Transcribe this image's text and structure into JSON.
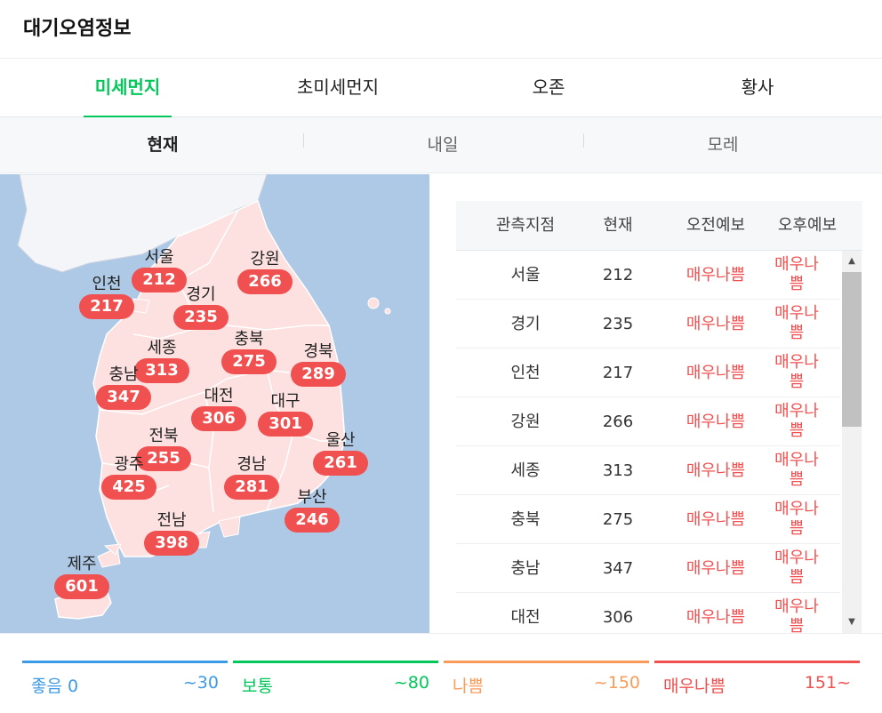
{
  "app": {
    "title": "대기오염정보"
  },
  "tabs": [
    {
      "label": "미세먼지",
      "active": true
    },
    {
      "label": "초미세먼지",
      "active": false
    },
    {
      "label": "오존",
      "active": false
    },
    {
      "label": "황사",
      "active": false
    }
  ],
  "subtabs": [
    {
      "label": "현재",
      "active": true
    },
    {
      "label": "내일",
      "active": false
    },
    {
      "label": "모레",
      "active": false
    }
  ],
  "map": {
    "colors": {
      "sea": "#aec9e6",
      "land": "#fde0e0",
      "north": "#f3f5f9",
      "badge": "#f05050"
    },
    "regions": [
      {
        "name": "서울",
        "value": "212"
      },
      {
        "name": "인천",
        "value": "217"
      },
      {
        "name": "경기",
        "value": "235"
      },
      {
        "name": "강원",
        "value": "266"
      },
      {
        "name": "세종",
        "value": "313"
      },
      {
        "name": "충북",
        "value": "275"
      },
      {
        "name": "경북",
        "value": "289"
      },
      {
        "name": "충남",
        "value": "347"
      },
      {
        "name": "대전",
        "value": "306"
      },
      {
        "name": "대구",
        "value": "301"
      },
      {
        "name": "울산",
        "value": "261"
      },
      {
        "name": "전북",
        "value": "255"
      },
      {
        "name": "광주",
        "value": "425"
      },
      {
        "name": "경남",
        "value": "281"
      },
      {
        "name": "부산",
        "value": "246"
      },
      {
        "name": "전남",
        "value": "398"
      },
      {
        "name": "제주",
        "value": "601"
      }
    ]
  },
  "table": {
    "headers": [
      "관측지점",
      "현재",
      "오전예보",
      "오후예보"
    ],
    "rows": [
      {
        "station": "서울",
        "now": "212",
        "am": "매우나쁨",
        "pm": "매우나쁨"
      },
      {
        "station": "경기",
        "now": "235",
        "am": "매우나쁨",
        "pm": "매우나쁨"
      },
      {
        "station": "인천",
        "now": "217",
        "am": "매우나쁨",
        "pm": "매우나쁨"
      },
      {
        "station": "강원",
        "now": "266",
        "am": "매우나쁨",
        "pm": "매우나쁨"
      },
      {
        "station": "세종",
        "now": "313",
        "am": "매우나쁨",
        "pm": "매우나쁨"
      },
      {
        "station": "충북",
        "now": "275",
        "am": "매우나쁨",
        "pm": "매우나쁨"
      },
      {
        "station": "충남",
        "now": "347",
        "am": "매우나쁨",
        "pm": "매우나쁨"
      },
      {
        "station": "대전",
        "now": "306",
        "am": "매우나쁨",
        "pm": "매우나쁨"
      }
    ]
  },
  "legend": [
    {
      "label": "좋음 0",
      "range": "~30",
      "color": "#3d9ae8"
    },
    {
      "label": "보통",
      "range": "~80",
      "color": "#03c75a"
    },
    {
      "label": "나쁨",
      "range": "~150",
      "color": "#fa9b5a"
    },
    {
      "label": "매우나쁨",
      "range": "151~",
      "color": "#f05050"
    }
  ]
}
